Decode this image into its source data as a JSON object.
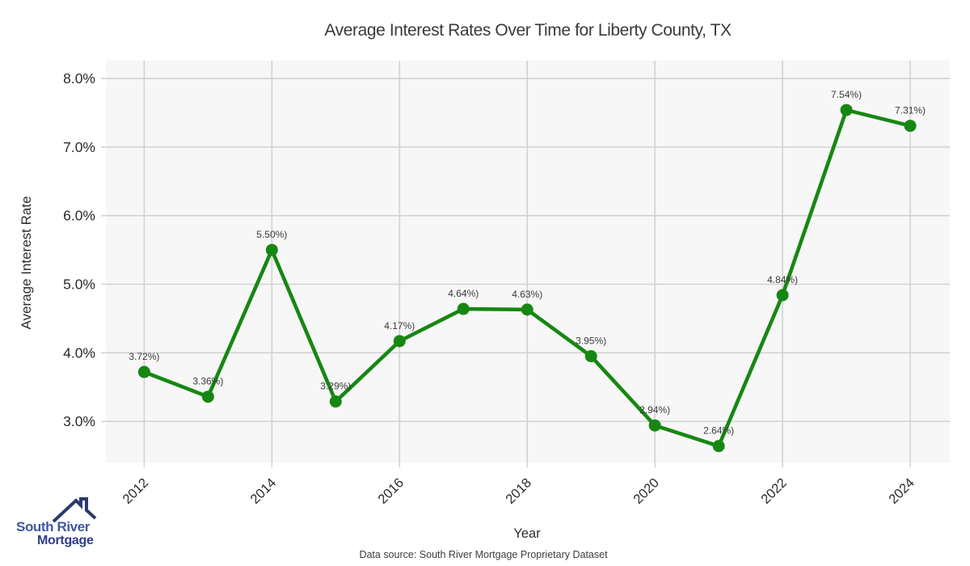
{
  "page": {
    "data_source": "Data source: South River Mortgage Proprietary Dataset"
  },
  "logo": {
    "line1": "South River",
    "line2": "Mortgage"
  },
  "chart_data": {
    "type": "line",
    "title": "Average Interest Rates Over Time for Liberty County, TX",
    "xlabel": "Year",
    "ylabel": "Average Interest Rate",
    "x": [
      2012,
      2013,
      2014,
      2015,
      2016,
      2017,
      2018,
      2019,
      2020,
      2021,
      2022,
      2023,
      2024
    ],
    "series": [
      {
        "name": "Average Interest Rate",
        "values": [
          3.72,
          3.36,
          5.5,
          3.29,
          4.17,
          4.64,
          4.63,
          3.95,
          2.94,
          2.64,
          4.84,
          7.54,
          7.31
        ]
      }
    ],
    "point_labels": [
      "3.72%)",
      "3.36%)",
      "5.50%)",
      "3.29%)",
      "4.17%)",
      "4.64%)",
      "4.63%)",
      "3.95%)",
      "2.94%)",
      "2.64%)",
      "4.84%)",
      "7.54%)",
      "7.31%)"
    ],
    "x_ticks": [
      2012,
      2014,
      2016,
      2018,
      2020,
      2022,
      2024
    ],
    "y_ticks": [
      3,
      4,
      5,
      6,
      7,
      8
    ],
    "y_tick_labels": [
      "3.0%",
      "4.0%",
      "5.0%",
      "6.0%",
      "7.0%",
      "8.0%"
    ],
    "xlim": [
      2011.4,
      2024.62
    ],
    "ylim": [
      2.4,
      8.26
    ],
    "grid": true,
    "legend": "none",
    "colors": {
      "line": "#178713",
      "marker": "#178713",
      "plot_bg": "#f7f7f7",
      "grid": "#d2d2d2",
      "tick_text": "#2b2b2b",
      "label_text": "#3a3a3a"
    }
  }
}
